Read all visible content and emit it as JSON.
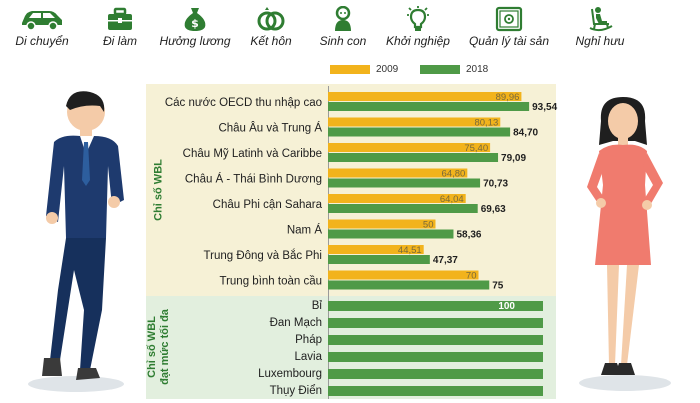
{
  "icons": [
    {
      "icon": "car-icon",
      "label": "Di chuyển"
    },
    {
      "icon": "briefcase-icon",
      "label": "Đi làm"
    },
    {
      "icon": "money-bag-icon",
      "label": "Hưởng lương"
    },
    {
      "icon": "rings-icon",
      "label": "Kết hôn"
    },
    {
      "icon": "baby-icon",
      "label": "Sinh con"
    },
    {
      "icon": "lightbulb-icon",
      "label": "Khởi nghiệp"
    },
    {
      "icon": "safe-icon",
      "label": "Quản lý tài sản"
    },
    {
      "icon": "rocking-chair-icon",
      "label": "Nghỉ hưu"
    }
  ],
  "sections": {
    "wbl_index": "Chỉ số WBL",
    "wbl_max": [
      "Chỉ số WBL",
      "đạt mức tối đa"
    ]
  },
  "colors": {
    "y2009": "#f2b31c",
    "y2018": "#4f9a47",
    "panel_wbl": "#f6f1d6",
    "panel_max": "#e2efde"
  },
  "chart_data": {
    "type": "bar",
    "orientation": "horizontal",
    "xlim": [
      0,
      100
    ],
    "legend_position": "top",
    "categories": [
      "Các nước OECD thu nhập cao",
      "Châu Âu và Trung Á",
      "Châu Mỹ Latinh và Caribbe",
      "Châu Á - Thái Bình Dương",
      "Châu Phi cận Sahara",
      "Nam Á",
      "Trung Đông và Bắc Phi",
      "Trung bình toàn cầu"
    ],
    "series": [
      {
        "name": "2009",
        "values": [
          89.96,
          80.13,
          75.4,
          64.8,
          64.04,
          50,
          44.51,
          70
        ],
        "labels": [
          "89,96",
          "80,13",
          "75,40",
          "64,80",
          "64,04",
          "50",
          "44,51",
          "70"
        ]
      },
      {
        "name": "2018",
        "values": [
          93.54,
          84.7,
          79.09,
          70.73,
          69.63,
          58.36,
          47.37,
          75
        ],
        "labels": [
          "93,54",
          "84,70",
          "79,09",
          "70,73",
          "69,63",
          "58,36",
          "47,37",
          "75"
        ]
      }
    ],
    "max_score": {
      "categories": [
        "Bỉ",
        "Đan Mạch",
        "Pháp",
        "Lavia",
        "Luxembourg",
        "Thụy Điển"
      ],
      "values": [
        100,
        100,
        100,
        100,
        100,
        100
      ],
      "value_label": "100"
    }
  }
}
